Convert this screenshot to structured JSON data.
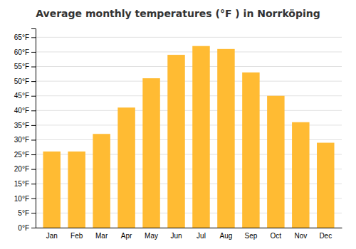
{
  "chart_data": {
    "type": "bar",
    "title": "Average monthly temperatures (°F ) in Norrköping",
    "categories": [
      "Jan",
      "Feb",
      "Mar",
      "Apr",
      "May",
      "Jun",
      "Jul",
      "Aug",
      "Sep",
      "Oct",
      "Nov",
      "Dec"
    ],
    "values": [
      26,
      26,
      32,
      41,
      51,
      59,
      62,
      61,
      53,
      45,
      36,
      29
    ],
    "color": "#FFBB33",
    "ylim": [
      0,
      68
    ],
    "yticks": [
      {
        "value": 0,
        "label": "0°F"
      },
      {
        "value": 5,
        "label": "5°F"
      },
      {
        "value": 10,
        "label": "10°F"
      },
      {
        "value": 15,
        "label": "15°F"
      },
      {
        "value": 20,
        "label": "20°F"
      },
      {
        "value": 25,
        "label": "25°F"
      },
      {
        "value": 30,
        "label": "30°F"
      },
      {
        "value": 35,
        "label": "35°F"
      },
      {
        "value": 40,
        "label": "40°F"
      },
      {
        "value": 45,
        "label": "45°F"
      },
      {
        "value": 50,
        "label": "50°F"
      },
      {
        "value": 55,
        "label": "55°F"
      },
      {
        "value": 60,
        "label": "60°F"
      },
      {
        "value": 65,
        "label": "65°F"
      }
    ],
    "grid": true
  }
}
